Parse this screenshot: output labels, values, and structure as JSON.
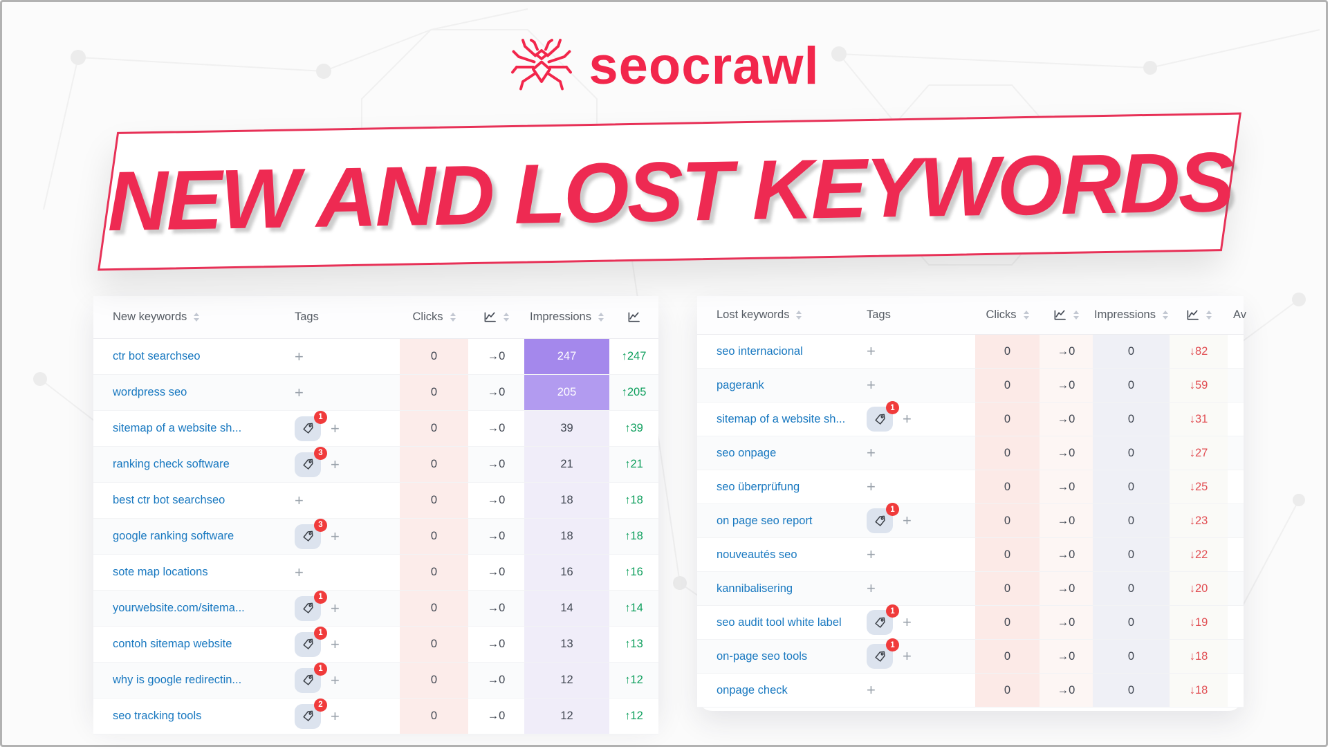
{
  "logo": {
    "brand": "seocrawl"
  },
  "banner": {
    "title": "NEW AND LOST KEYWORDS"
  },
  "colors": {
    "brand_red": "#f2264b",
    "banner_text": "#ee2a52",
    "keyword_link": "#1878c0",
    "heat_purple_1": "#a488ec",
    "heat_purple_2": "#b29bf0",
    "clicks_col_bg": "#fcecea",
    "up_green": "#0e9f5d",
    "down_red": "#e14d52",
    "badge_red": "#f03b3b"
  },
  "ui": {
    "plus": "+",
    "flat_arrow": "→",
    "up_arrow": "↑",
    "down_arrow": "↓"
  },
  "tables": {
    "new": {
      "delta_direction": "up",
      "columns": [
        {
          "label": "New keywords",
          "sort": true
        },
        {
          "label": "Tags"
        },
        {
          "label": "Clicks",
          "sort": true
        },
        {
          "icon": "line-chart",
          "sort": true
        },
        {
          "label": "Impressions",
          "sort": true
        },
        {
          "icon": "line-chart"
        }
      ],
      "rows": [
        {
          "keyword": "ctr bot searchseo",
          "tag_count": null,
          "clicks": "0",
          "clicks_trend": "0",
          "impressions": "247",
          "delta": "247",
          "heat": "hot1"
        },
        {
          "keyword": "wordpress seo",
          "tag_count": null,
          "clicks": "0",
          "clicks_trend": "0",
          "impressions": "205",
          "delta": "205",
          "heat": "hot2"
        },
        {
          "keyword": "sitemap of a website sh...",
          "tag_count": 1,
          "clicks": "0",
          "clicks_trend": "0",
          "impressions": "39",
          "delta": "39",
          "heat": ""
        },
        {
          "keyword": "ranking check software",
          "tag_count": 3,
          "clicks": "0",
          "clicks_trend": "0",
          "impressions": "21",
          "delta": "21",
          "heat": ""
        },
        {
          "keyword": "best ctr bot searchseo",
          "tag_count": null,
          "clicks": "0",
          "clicks_trend": "0",
          "impressions": "18",
          "delta": "18",
          "heat": ""
        },
        {
          "keyword": "google ranking software",
          "tag_count": 3,
          "clicks": "0",
          "clicks_trend": "0",
          "impressions": "18",
          "delta": "18",
          "heat": ""
        },
        {
          "keyword": "sote map locations",
          "tag_count": null,
          "clicks": "0",
          "clicks_trend": "0",
          "impressions": "16",
          "delta": "16",
          "heat": ""
        },
        {
          "keyword": "yourwebsite.com/sitema...",
          "tag_count": 1,
          "clicks": "0",
          "clicks_trend": "0",
          "impressions": "14",
          "delta": "14",
          "heat": ""
        },
        {
          "keyword": "contoh sitemap website",
          "tag_count": 1,
          "clicks": "0",
          "clicks_trend": "0",
          "impressions": "13",
          "delta": "13",
          "heat": ""
        },
        {
          "keyword": "why is google redirectin...",
          "tag_count": 1,
          "clicks": "0",
          "clicks_trend": "0",
          "impressions": "12",
          "delta": "12",
          "heat": ""
        },
        {
          "keyword": "seo tracking tools",
          "tag_count": 2,
          "clicks": "0",
          "clicks_trend": "0",
          "impressions": "12",
          "delta": "12",
          "heat": ""
        }
      ]
    },
    "lost": {
      "delta_direction": "down",
      "columns": [
        {
          "label": "Lost keywords",
          "sort": true
        },
        {
          "label": "Tags"
        },
        {
          "label": "Clicks",
          "sort": true
        },
        {
          "icon": "line-chart",
          "sort": true
        },
        {
          "label": "Impressions",
          "sort": true
        },
        {
          "icon": "line-chart",
          "sort": true
        },
        {
          "label": "Av"
        }
      ],
      "rows": [
        {
          "keyword": "seo internacional",
          "tag_count": null,
          "clicks": "0",
          "clicks_trend": "0",
          "impressions": "0",
          "delta": "82",
          "heat": ""
        },
        {
          "keyword": "pagerank",
          "tag_count": null,
          "clicks": "0",
          "clicks_trend": "0",
          "impressions": "0",
          "delta": "59",
          "heat": ""
        },
        {
          "keyword": "sitemap of a website sh...",
          "tag_count": 1,
          "clicks": "0",
          "clicks_trend": "0",
          "impressions": "0",
          "delta": "31",
          "heat": ""
        },
        {
          "keyword": "seo onpage",
          "tag_count": null,
          "clicks": "0",
          "clicks_trend": "0",
          "impressions": "0",
          "delta": "27",
          "heat": ""
        },
        {
          "keyword": "seo überprüfung",
          "tag_count": null,
          "clicks": "0",
          "clicks_trend": "0",
          "impressions": "0",
          "delta": "25",
          "heat": ""
        },
        {
          "keyword": "on page seo report",
          "tag_count": 1,
          "clicks": "0",
          "clicks_trend": "0",
          "impressions": "0",
          "delta": "23",
          "heat": ""
        },
        {
          "keyword": "nouveautés seo",
          "tag_count": null,
          "clicks": "0",
          "clicks_trend": "0",
          "impressions": "0",
          "delta": "22",
          "heat": ""
        },
        {
          "keyword": "kannibalisering",
          "tag_count": null,
          "clicks": "0",
          "clicks_trend": "0",
          "impressions": "0",
          "delta": "20",
          "heat": ""
        },
        {
          "keyword": "seo audit tool white label",
          "tag_count": 1,
          "clicks": "0",
          "clicks_trend": "0",
          "impressions": "0",
          "delta": "19",
          "heat": ""
        },
        {
          "keyword": "on-page seo tools",
          "tag_count": 1,
          "clicks": "0",
          "clicks_trend": "0",
          "impressions": "0",
          "delta": "18",
          "heat": ""
        },
        {
          "keyword": "onpage check",
          "tag_count": null,
          "clicks": "0",
          "clicks_trend": "0",
          "impressions": "0",
          "delta": "18",
          "heat": ""
        }
      ]
    }
  }
}
